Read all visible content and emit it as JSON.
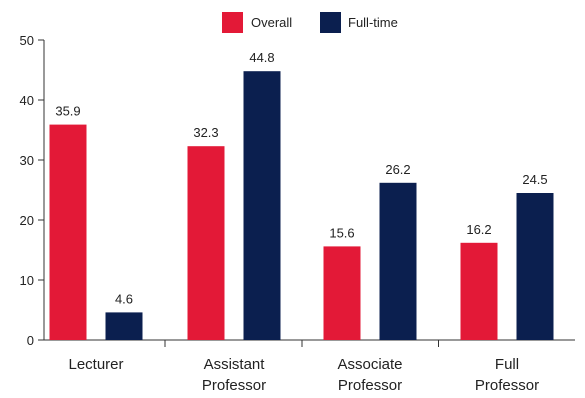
{
  "chart_data": {
    "type": "bar",
    "categories": [
      [
        "Lecturer"
      ],
      [
        "Assistant",
        "Professor"
      ],
      [
        "Associate",
        "Professor"
      ],
      [
        "Full",
        "Professor"
      ]
    ],
    "series": [
      {
        "name": "Overall",
        "color": "#e31937",
        "values": [
          35.9,
          32.3,
          15.6,
          16.2
        ]
      },
      {
        "name": "Full-time",
        "color": "#0b1f4f",
        "values": [
          4.6,
          44.8,
          26.2,
          24.5
        ]
      }
    ],
    "ylim": [
      0,
      50
    ],
    "yticks": [
      0,
      10,
      20,
      30,
      40,
      50
    ],
    "grid": false,
    "legend_position": "top-center"
  }
}
